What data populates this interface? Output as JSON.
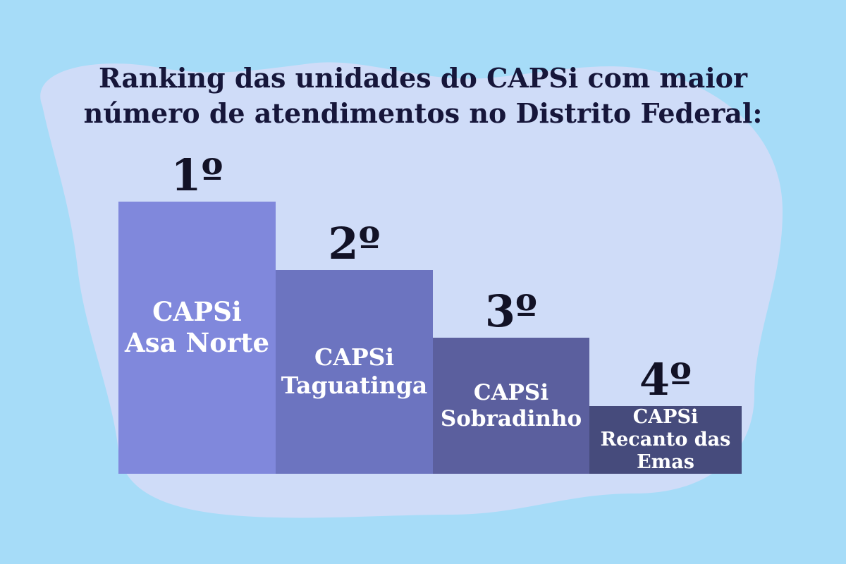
{
  "colors": {
    "background": "#a6dcf8",
    "blob": "#cfdcf8",
    "title": "#16163a",
    "rank_text": "#121226",
    "bar_text": "#ffffff"
  },
  "chart_data": {
    "type": "bar",
    "title_lines": [
      "Ranking das unidades do CAPSi com maior",
      "número de atendimentos no Distrito Federal:"
    ],
    "xlabel": "",
    "ylabel": "",
    "grid": false,
    "legend": "none",
    "categories": [
      "CAPSi\nAsa Norte",
      "CAPSi\nTaguatinga",
      "CAPSi\nSobradinho",
      "CAPSi\nRecanto das\nEmas"
    ],
    "ranks": [
      "1º",
      "2º",
      "3º",
      "4º"
    ],
    "values": [
      4,
      3,
      2,
      1
    ],
    "bar_colors": [
      "#8088dc",
      "#6c74c0",
      "#5b5f9e",
      "#464b7c"
    ]
  }
}
